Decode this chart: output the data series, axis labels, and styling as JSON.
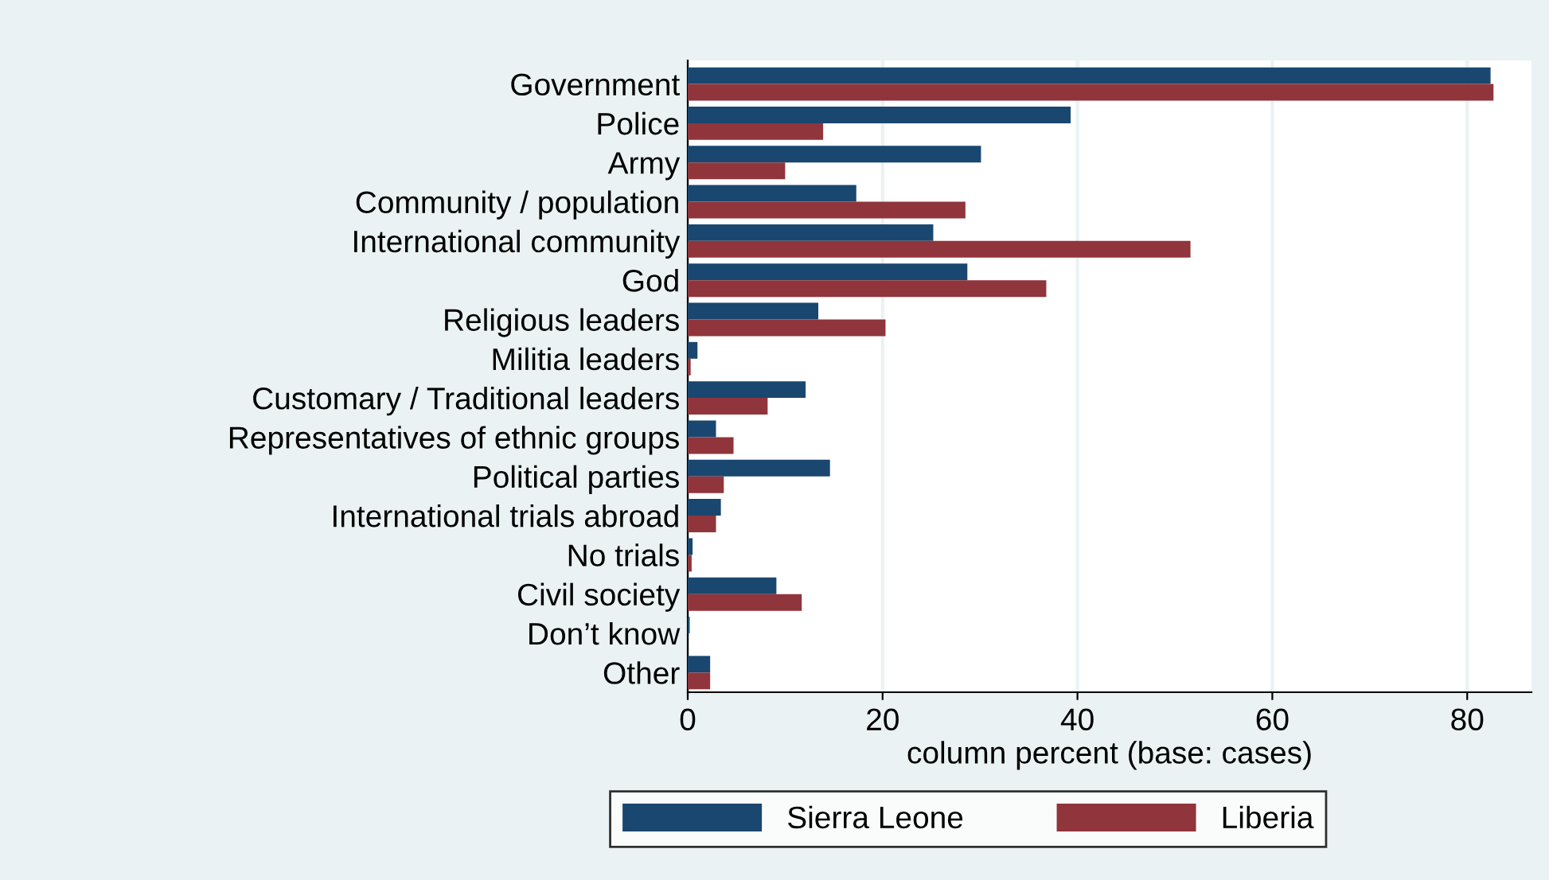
{
  "chart_data": {
    "type": "bar",
    "orientation": "horizontal",
    "xlabel": "column percent (base: cases)",
    "categories": [
      "Government",
      "Police",
      "Army",
      "Community / population",
      "International community",
      "God",
      "Religious leaders",
      "Militia leaders",
      "Customary / Traditional leaders",
      "Representatives of ethnic groups",
      "Political parties",
      "International trials abroad",
      "No trials",
      "Civil society",
      "Don’t know",
      "Other"
    ],
    "series": [
      {
        "name": "Sierra Leone",
        "color": "#1a476f",
        "values": [
          82.4,
          39.3,
          30.1,
          17.3,
          25.2,
          28.7,
          13.4,
          1.0,
          12.1,
          2.9,
          14.6,
          3.4,
          0.5,
          9.1,
          0.2,
          2.3
        ]
      },
      {
        "name": "Liberia",
        "color": "#90353b",
        "values": [
          82.7,
          13.9,
          10.0,
          28.5,
          51.6,
          36.8,
          20.3,
          0.3,
          8.2,
          4.7,
          3.7,
          2.9,
          0.4,
          11.7,
          0,
          2.3
        ]
      }
    ],
    "xlim": [
      0,
      86.6
    ],
    "xticks": [
      0,
      20,
      40,
      60,
      80
    ],
    "grid": "x",
    "legend": "bottom"
  }
}
